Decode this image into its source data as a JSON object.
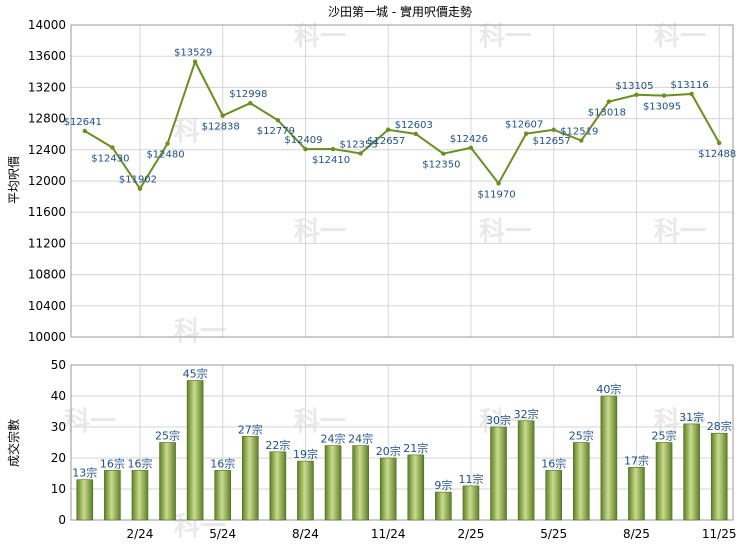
{
  "chart_data": [
    {
      "type": "line",
      "title": "沙田第一城 - 實用呎價走勢",
      "ylabel": "平均呎價",
      "ylim": [
        10000,
        14000
      ],
      "yticks": [
        10000,
        10400,
        10800,
        11200,
        11600,
        12000,
        12400,
        12800,
        13200,
        13600,
        14000
      ],
      "x_tick_labels": [
        "2/24",
        "5/24",
        "8/24",
        "11/24",
        "2/25",
        "5/25",
        "8/25",
        "11/25"
      ],
      "line_color": "#6b8e23",
      "grid": true,
      "series": [
        {
          "values": [
            12641,
            12430,
            11902,
            12480,
            13529,
            12838,
            12998,
            12779,
            12409,
            12410,
            12353,
            12657,
            12603,
            12350,
            12426,
            11970,
            12607,
            12657,
            12519,
            13018,
            13105,
            13095,
            13116,
            12488
          ],
          "labels": [
            "$12641",
            "$12430",
            "$11902",
            "$12480",
            "$13529",
            "$12838",
            "$12998",
            "$12779",
            "$12409",
            "$12410",
            "$12353",
            "$12657",
            "$12603",
            "$12350",
            "$12426",
            "$11970",
            "$12607",
            "$12657",
            "$12519",
            "$13018",
            "$13105",
            "$13095",
            "$13116",
            "$12488"
          ]
        }
      ]
    },
    {
      "type": "bar",
      "ylabel": "成交宗數",
      "ylim": [
        0,
        50
      ],
      "yticks": [
        0,
        10,
        20,
        30,
        40,
        50
      ],
      "x_tick_labels": [
        "2/24",
        "5/24",
        "8/24",
        "11/24",
        "2/25",
        "5/25",
        "8/25",
        "11/25"
      ],
      "bar_color": "#7a9a3a",
      "grid": true,
      "values": [
        13,
        16,
        16,
        25,
        45,
        16,
        27,
        22,
        19,
        24,
        24,
        20,
        21,
        9,
        11,
        30,
        32,
        16,
        25,
        40,
        17,
        25,
        31,
        28
      ],
      "labels": [
        "13宗",
        "16宗",
        "16宗",
        "25宗",
        "45宗",
        "16宗",
        "27宗",
        "22宗",
        "19宗",
        "24宗",
        "24宗",
        "20宗",
        "21宗",
        "9宗",
        "11宗",
        "30宗",
        "32宗",
        "16宗",
        "25宗",
        "40宗",
        "17宗",
        "25宗",
        "31宗",
        "28宗"
      ]
    }
  ],
  "watermark": "科一"
}
